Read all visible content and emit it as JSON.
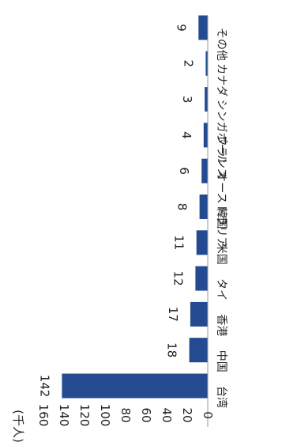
{
  "chart_data": {
    "type": "bar",
    "orientation": "horizontal (rotated page)",
    "title": "",
    "unit_label": "(千人)",
    "categories": [
      "台湾",
      "中国",
      "香港",
      "タイ",
      "米国",
      "韓国",
      "オーストラリア",
      "フランス",
      "シンガポール",
      "カナダ",
      "その他"
    ],
    "values": [
      142,
      18,
      17,
      12,
      11,
      8,
      6,
      4,
      3,
      2,
      9
    ],
    "axis_ticks": [
      "0",
      "20",
      "40",
      "60",
      "80",
      "100",
      "120",
      "140",
      "160"
    ],
    "ylim": [
      0,
      160
    ],
    "grid": false,
    "bar_color": "#244b91"
  }
}
